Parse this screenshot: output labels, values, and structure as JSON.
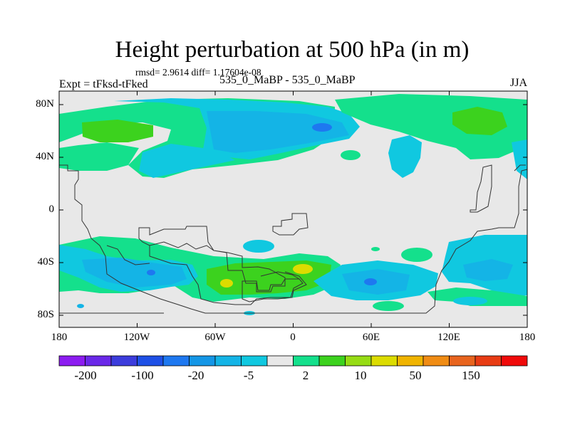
{
  "title": "Height perturbation at 500 hPa (in m)",
  "stats_line": "rmsd= 2.9614 diff= 1.17604e-08",
  "left_label": "Expt = tFksd-tFked",
  "center_label": "535_0_MaBP - 535_0_MaBP",
  "right_label": "JJA",
  "lat_ticks": [
    "80N",
    "40N",
    "0",
    "40S",
    "80S"
  ],
  "lon_ticks": [
    "180",
    "120W",
    "60W",
    "0",
    "60E",
    "120E",
    "180"
  ],
  "colorbar": {
    "colors": [
      "#8c1cf0",
      "#6a28e8",
      "#3c3cdc",
      "#1e50e6",
      "#1e78f0",
      "#1496e6",
      "#14b4e6",
      "#10c8e0",
      "#e8e8e8",
      "#14e08c",
      "#3cd21e",
      "#96dc14",
      "#dcdc00",
      "#f0b400",
      "#f08c14",
      "#e8641e",
      "#e83c14",
      "#f00a0a"
    ],
    "labels": [
      "-200",
      "-100",
      "-20",
      "-5",
      "2",
      "10",
      "50",
      "150"
    ]
  }
}
